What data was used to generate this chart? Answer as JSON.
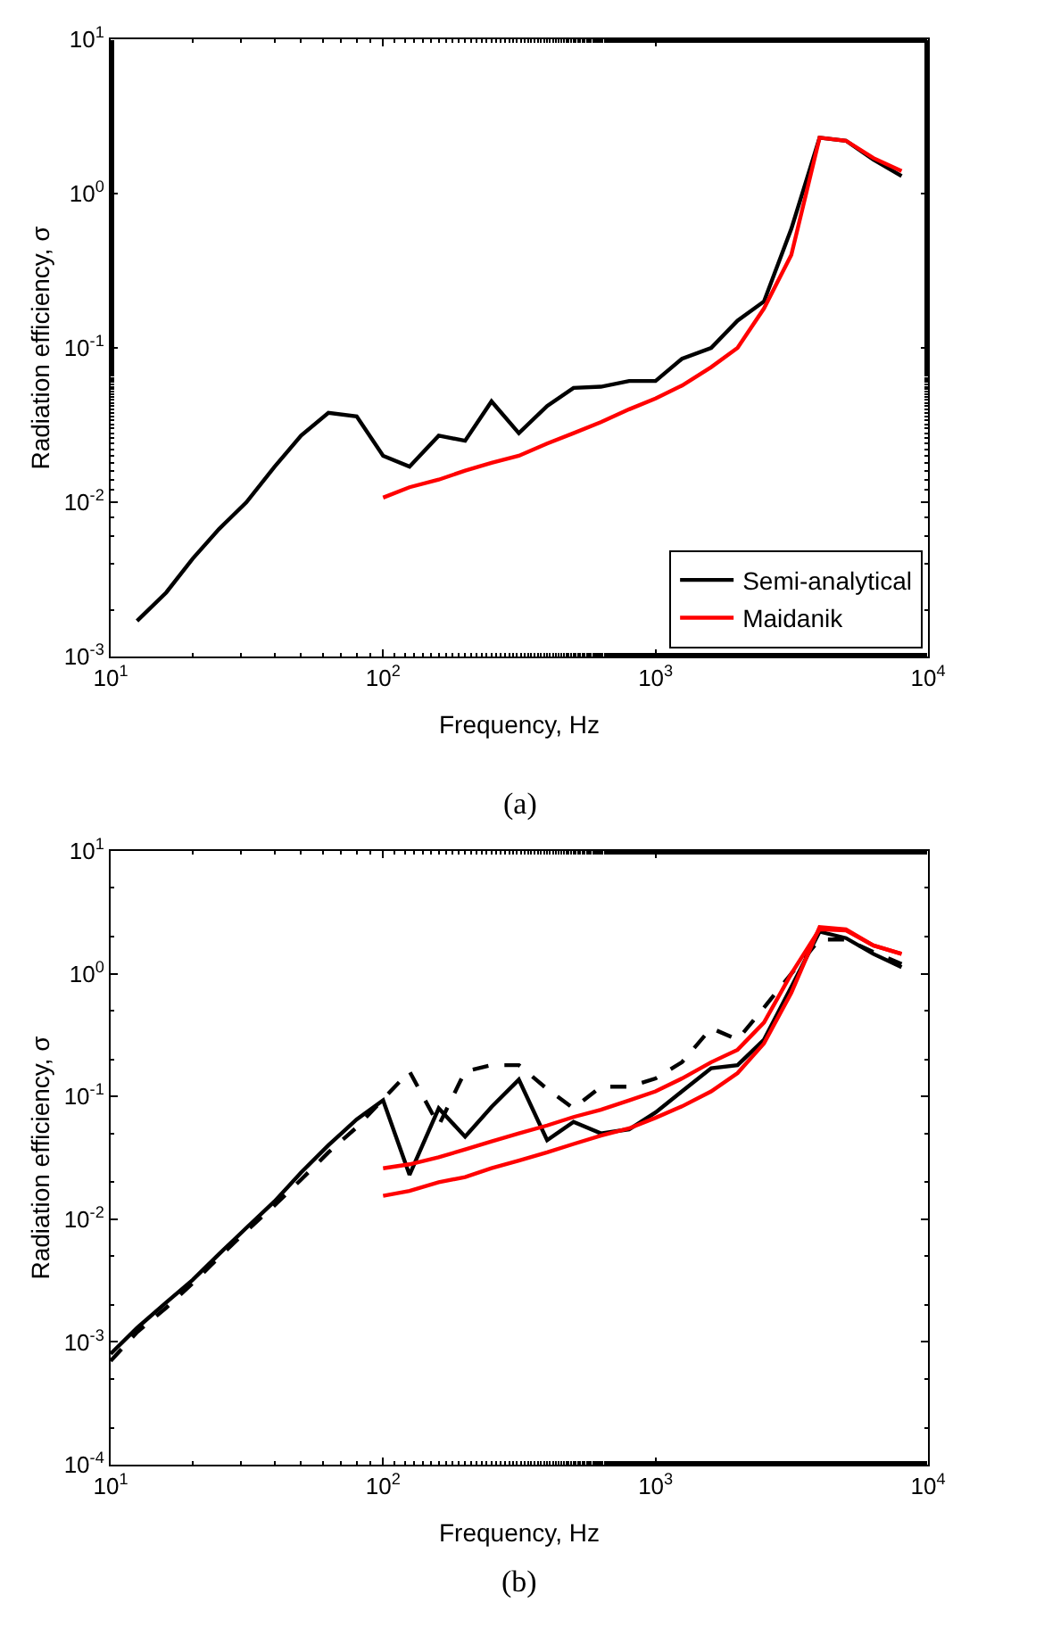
{
  "chart_data": [
    {
      "type": "line",
      "xlabel": "Frequency, Hz",
      "ylabel": "Radiation efficiency, σ",
      "log": "xy",
      "legend": "bottom right",
      "xlim": [
        10,
        10000
      ],
      "ylim": [
        0.001,
        10
      ],
      "xticks": [
        {
          "value": 10,
          "label": "10$^{1}$"
        },
        {
          "value": 100,
          "label": "10$^{2}$"
        },
        {
          "value": 1000,
          "label": "10$^{3}$"
        },
        {
          "value": 10000,
          "label": "10$^{4}$"
        }
      ],
      "yticks": [
        {
          "value": 0.001,
          "label": "10$^{-3}$"
        },
        {
          "value": 0.01,
          "label": "10$^{-2}$"
        },
        {
          "value": 0.1,
          "label": "10$^{-1}$"
        },
        {
          "value": 1,
          "label": "10$^{0}$"
        },
        {
          "value": 10,
          "label": "10$^{1}$"
        }
      ],
      "annotations": [
        "(a)"
      ],
      "series": [
        {
          "name": "Semi-analytical",
          "color": "#000000",
          "line_style": "solid",
          "x": [
            12.5,
            16,
            20,
            25,
            31.5,
            40,
            50,
            63,
            80,
            100,
            125,
            160,
            200,
            250,
            315,
            400,
            500,
            630,
            800,
            1000,
            1250,
            1600,
            2000,
            2500,
            3150,
            4000,
            5000,
            6300,
            8000
          ],
          "values": [
            0.0017,
            0.0026,
            0.0043,
            0.0067,
            0.01,
            0.017,
            0.027,
            0.038,
            0.036,
            0.02,
            0.017,
            0.027,
            0.025,
            0.045,
            0.028,
            0.042,
            0.055,
            0.056,
            0.061,
            0.061,
            0.085,
            0.1,
            0.15,
            0.2,
            0.59,
            2.3,
            2.2,
            1.66,
            1.3
          ]
        },
        {
          "name": "Maidanik",
          "color": "#ff0000",
          "line_style": "solid",
          "x": [
            100,
            125,
            160,
            200,
            250,
            315,
            400,
            500,
            630,
            800,
            1000,
            1250,
            1600,
            2000,
            2500,
            3150,
            4000,
            5000,
            6300,
            8000
          ],
          "values": [
            0.0107,
            0.0125,
            0.014,
            0.016,
            0.018,
            0.02,
            0.024,
            0.028,
            0.033,
            0.04,
            0.047,
            0.057,
            0.075,
            0.1,
            0.18,
            0.4,
            2.3,
            2.2,
            1.7,
            1.4
          ]
        }
      ]
    },
    {
      "type": "line",
      "xlabel": "Frequency, Hz",
      "ylabel": "Radiation efficiency, σ",
      "log": "xy",
      "xlim": [
        10,
        10000
      ],
      "ylim": [
        0.0001,
        10
      ],
      "xticks": [
        {
          "value": 10,
          "label": "10$^{1}$"
        },
        {
          "value": 100,
          "label": "10$^{2}$"
        },
        {
          "value": 1000,
          "label": "10$^{3}$"
        },
        {
          "value": 10000,
          "label": "10$^{4}$"
        }
      ],
      "yticks": [
        {
          "value": 0.0001,
          "label": "10$^{-4}$"
        },
        {
          "value": 0.001,
          "label": "10$^{-3}$"
        },
        {
          "value": 0.01,
          "label": "10$^{-2}$"
        },
        {
          "value": 0.1,
          "label": "10$^{-1}$"
        },
        {
          "value": 1,
          "label": "10$^{0}$"
        },
        {
          "value": 10,
          "label": "10$^{1}$"
        }
      ],
      "annotations": [
        "(b)"
      ],
      "series": [
        {
          "color": "#000000",
          "line_style": "solid",
          "x": [
            10,
            12.5,
            16,
            20,
            25,
            31.5,
            40,
            50,
            63,
            80,
            100,
            125,
            160,
            200,
            250,
            315,
            400,
            500,
            630,
            800,
            1000,
            1250,
            1600,
            2000,
            2500,
            3150,
            4000,
            5000,
            6300,
            8000
          ],
          "values": [
            0.0008,
            0.0013,
            0.0021,
            0.0032,
            0.0052,
            0.0085,
            0.014,
            0.024,
            0.04,
            0.065,
            0.093,
            0.023,
            0.08,
            0.047,
            0.082,
            0.137,
            0.044,
            0.062,
            0.05,
            0.054,
            0.074,
            0.11,
            0.17,
            0.18,
            0.29,
            0.78,
            2.2,
            1.95,
            1.45,
            1.13
          ]
        },
        {
          "color": "#000000",
          "line_style": "dashed",
          "x": [
            10,
            12.5,
            16,
            20,
            25,
            31.5,
            40,
            50,
            63,
            80,
            100,
            125,
            160,
            200,
            250,
            315,
            400,
            500,
            630,
            800,
            1000,
            1250,
            1600,
            2000,
            2500,
            3150,
            4000,
            5000,
            6300,
            8000
          ],
          "values": [
            0.0007,
            0.0012,
            0.0019,
            0.003,
            0.0049,
            0.008,
            0.013,
            0.021,
            0.035,
            0.056,
            0.095,
            0.16,
            0.058,
            0.16,
            0.18,
            0.18,
            0.115,
            0.08,
            0.12,
            0.12,
            0.14,
            0.19,
            0.36,
            0.29,
            0.53,
            1.0,
            1.9,
            1.9,
            1.5,
            1.2
          ]
        },
        {
          "color": "#ff0000",
          "line_style": "solid",
          "x": [
            100,
            125,
            160,
            200,
            250,
            315,
            400,
            500,
            630,
            800,
            1000,
            1250,
            1600,
            2000,
            2500,
            3150,
            4000,
            5000,
            6300,
            8000
          ],
          "values": [
            0.026,
            0.028,
            0.032,
            0.037,
            0.043,
            0.05,
            0.058,
            0.068,
            0.078,
            0.093,
            0.11,
            0.14,
            0.19,
            0.24,
            0.4,
            1.0,
            2.3,
            2.25,
            1.7,
            1.45
          ]
        },
        {
          "color": "#ff0000",
          "line_style": "solid",
          "x": [
            100,
            125,
            160,
            200,
            250,
            315,
            400,
            500,
            630,
            800,
            1000,
            1250,
            1600,
            2000,
            2500,
            3150,
            4000,
            5000,
            6300,
            8000
          ],
          "values": [
            0.0155,
            0.017,
            0.02,
            0.022,
            0.026,
            0.03,
            0.035,
            0.041,
            0.048,
            0.055,
            0.067,
            0.083,
            0.11,
            0.155,
            0.27,
            0.7,
            2.4,
            2.3,
            1.7,
            1.45
          ]
        }
      ]
    }
  ]
}
